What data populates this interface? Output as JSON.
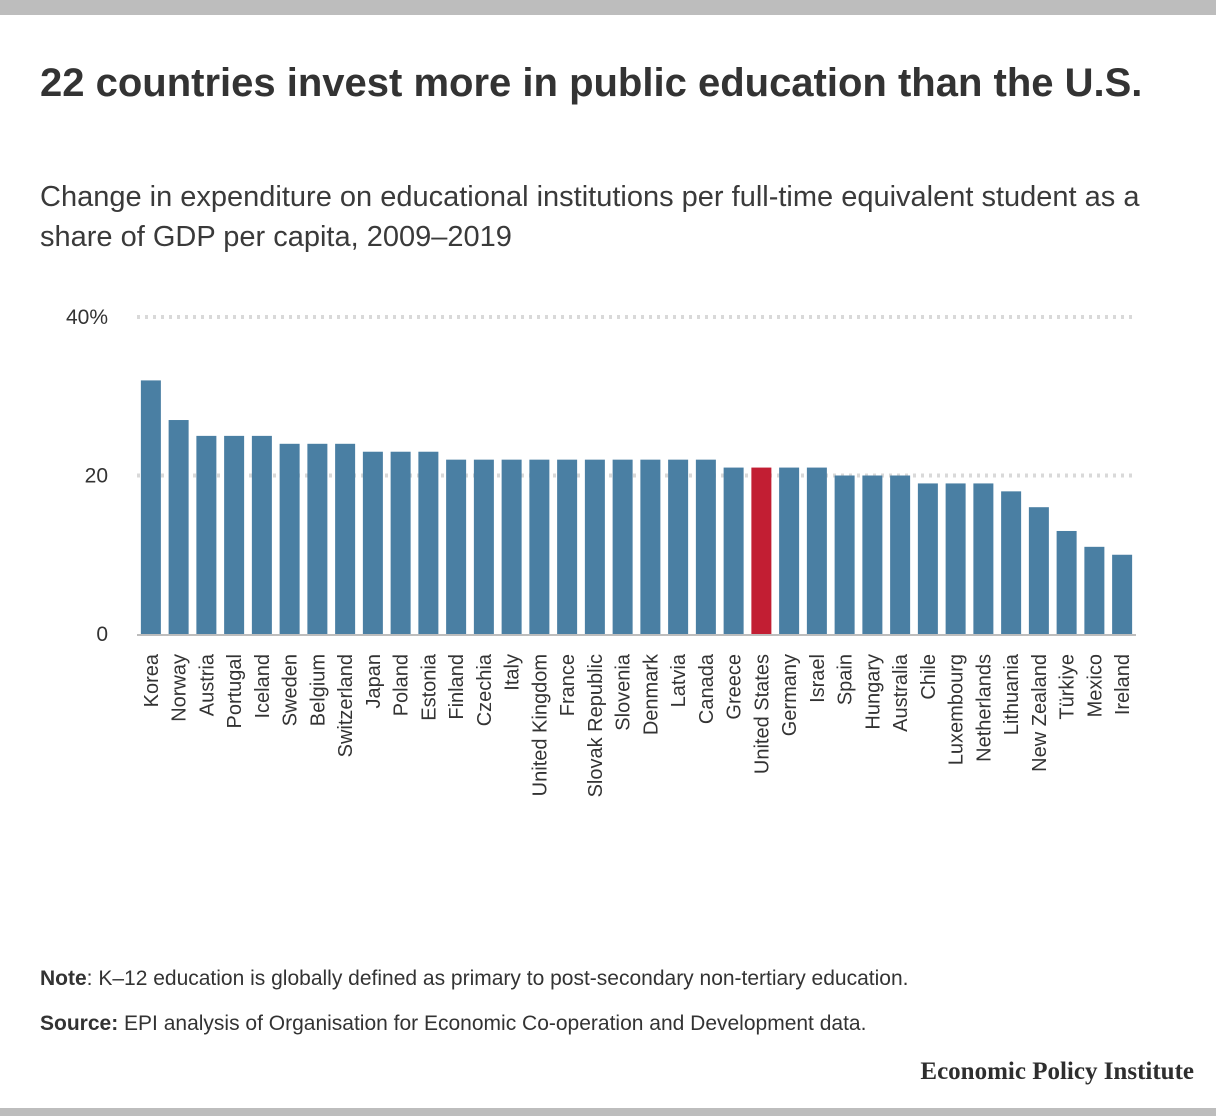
{
  "header": {
    "title": "22 countries invest more in public education than the U.S.",
    "subtitle": "Change in expenditure on educational institutions per full-time equivalent student as a share of GDP per capita, 2009–2019"
  },
  "footer": {
    "note_label": "Note",
    "note_text": ": K–12 education is globally defined as primary to post-secondary non-tertiary education.",
    "source_label": "Source:",
    "source_text": " EPI analysis of Organisation for Economic Co-operation and Development data.",
    "brand": "Economic Policy Institute"
  },
  "colors": {
    "bar": "#4a7fa3",
    "highlight": "#c21e33",
    "grid": "#d9d9d9",
    "axis": "#bdbdbd"
  },
  "chart_data": {
    "type": "bar",
    "title": "22 countries invest more in public education than the U.S.",
    "xlabel": "",
    "ylabel": "",
    "ylim": [
      0,
      40
    ],
    "yticks": [
      {
        "value": 0,
        "label": "0"
      },
      {
        "value": 20,
        "label": "20"
      },
      {
        "value": 40,
        "label": "40%"
      }
    ],
    "grid": true,
    "highlight": "United States",
    "categories": [
      "Korea",
      "Norway",
      "Austria",
      "Portugal",
      "Iceland",
      "Sweden",
      "Belgium",
      "Switzerland",
      "Japan",
      "Poland",
      "Estonia",
      "Finland",
      "Czechia",
      "Italy",
      "United Kingdom",
      "France",
      "Slovak Republic",
      "Slovenia",
      "Denmark",
      "Latvia",
      "Canada",
      "Greece",
      "United States",
      "Germany",
      "Israel",
      "Spain",
      "Hungary",
      "Australia",
      "Chile",
      "Luxembourg",
      "Netherlands",
      "Lithuania",
      "New Zealand",
      "Türkiye",
      "Mexico",
      "Ireland"
    ],
    "values": [
      32,
      27,
      25,
      25,
      25,
      24,
      24,
      24,
      23,
      23,
      23,
      22,
      22,
      22,
      22,
      22,
      22,
      22,
      22,
      22,
      22,
      21,
      21,
      21,
      21,
      20,
      20,
      20,
      19,
      19,
      19,
      18,
      16,
      13,
      11,
      10
    ]
  }
}
